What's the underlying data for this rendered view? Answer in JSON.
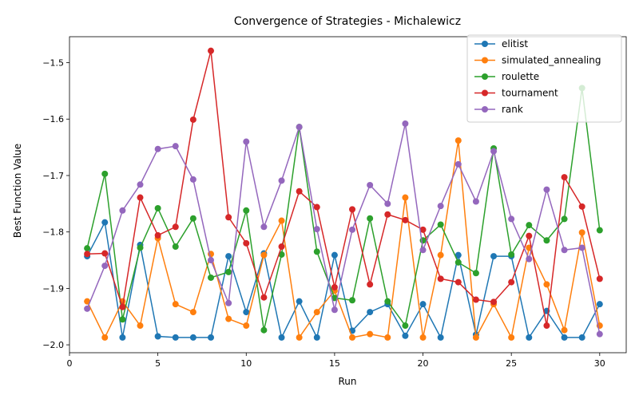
{
  "chart_data": {
    "type": "line",
    "title": "Convergence of Strategies - Michalewicz",
    "xlabel": "Run",
    "ylabel": "Best Function Value",
    "xlim": [
      0,
      31.5
    ],
    "ylim": [
      -2.014,
      -1.454
    ],
    "xticks": [
      0,
      5,
      10,
      15,
      20,
      25,
      30
    ],
    "yticks": [
      -2.0,
      -1.9,
      -1.8,
      -1.7,
      -1.6,
      -1.5
    ],
    "ytick_labels": [
      "−2.0",
      "−1.9",
      "−1.8",
      "−1.7",
      "−1.6",
      "−1.5"
    ],
    "grid": false,
    "legend_position": "top-right",
    "x": [
      1,
      2,
      3,
      4,
      5,
      6,
      7,
      8,
      9,
      10,
      11,
      12,
      13,
      14,
      15,
      16,
      17,
      18,
      19,
      20,
      21,
      22,
      23,
      24,
      25,
      26,
      27,
      28,
      29,
      30
    ],
    "series": [
      {
        "name": "elitist",
        "color": "#1f77b4",
        "values": [
          -1.843,
          -1.783,
          -1.987,
          -1.823,
          -1.985,
          -1.987,
          -1.987,
          -1.987,
          -1.843,
          -1.942,
          -1.838,
          -1.987,
          -1.923,
          -1.987,
          -1.841,
          -1.975,
          -1.942,
          -1.928,
          -1.984,
          -1.928,
          -1.987,
          -1.841,
          -1.982,
          -1.843,
          -1.843,
          -1.987,
          -1.94,
          -1.987,
          -1.987,
          -1.928
        ]
      },
      {
        "name": "simulated_annealing",
        "color": "#ff7f0e",
        "values": [
          -1.923,
          -1.987,
          -1.923,
          -1.966,
          -1.811,
          -1.928,
          -1.942,
          -1.839,
          -1.954,
          -1.966,
          -1.841,
          -1.78,
          -1.987,
          -1.942,
          -1.904,
          -1.987,
          -1.981,
          -1.987,
          -1.739,
          -1.987,
          -1.841,
          -1.638,
          -1.987,
          -1.928,
          -1.987,
          -1.828,
          -1.893,
          -1.974,
          -1.801,
          -1.966
        ]
      },
      {
        "name": "roulette",
        "color": "#2ca02c",
        "values": [
          -1.829,
          -1.697,
          -1.955,
          -1.828,
          -1.758,
          -1.826,
          -1.776,
          -1.881,
          -1.871,
          -1.762,
          -1.974,
          -1.84,
          -1.614,
          -1.835,
          -1.917,
          -1.921,
          -1.776,
          -1.923,
          -1.966,
          -1.815,
          -1.787,
          -1.854,
          -1.873,
          -1.652,
          -1.84,
          -1.788,
          -1.815,
          -1.777,
          -1.545,
          -1.797
        ]
      },
      {
        "name": "tournament",
        "color": "#d62728",
        "values": [
          -1.839,
          -1.838,
          -1.933,
          -1.739,
          -1.806,
          -1.791,
          -1.601,
          -1.479,
          -1.774,
          -1.82,
          -1.916,
          -1.826,
          -1.728,
          -1.756,
          -1.898,
          -1.76,
          -1.893,
          -1.769,
          -1.779,
          -1.796,
          -1.883,
          -1.889,
          -1.92,
          -1.924,
          -1.889,
          -1.807,
          -1.966,
          -1.703,
          -1.755,
          -1.883
        ]
      },
      {
        "name": "rank",
        "color": "#9467bd",
        "values": [
          -1.936,
          -1.86,
          -1.762,
          -1.716,
          -1.653,
          -1.648,
          -1.707,
          -1.85,
          -1.926,
          -1.64,
          -1.791,
          -1.709,
          -1.614,
          -1.795,
          -1.938,
          -1.796,
          -1.717,
          -1.75,
          -1.608,
          -1.832,
          -1.754,
          -1.68,
          -1.746,
          -1.657,
          -1.777,
          -1.848,
          -1.725,
          -1.832,
          -1.828,
          -1.981
        ]
      }
    ]
  }
}
